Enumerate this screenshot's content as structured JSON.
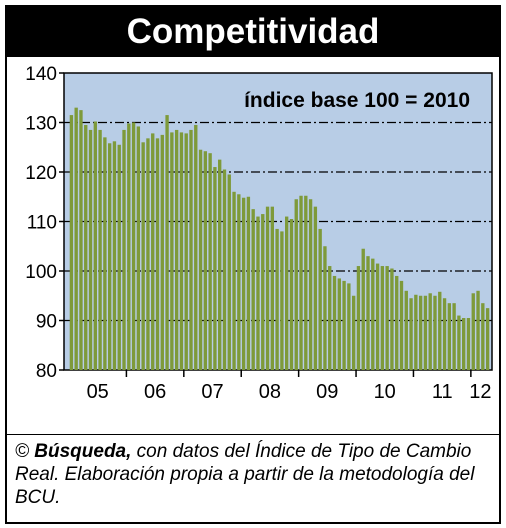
{
  "title": "Competitividad",
  "chart_data": {
    "type": "bar",
    "annotation": "índice base 100 = 2010",
    "ylim": [
      80,
      140
    ],
    "yticks": [
      80,
      90,
      100,
      110,
      120,
      130,
      140
    ],
    "gridlines_at": [
      90,
      100,
      110,
      120,
      130
    ],
    "grid": "dash-dot horizontal",
    "year_labels": [
      "05",
      "06",
      "07",
      "08",
      "09",
      "10",
      "11",
      "12"
    ],
    "bar_color": "#7e9a3a",
    "background_color": "#b8cde6",
    "series": [
      {
        "values": [
          131.5,
          133,
          132.5,
          129.5,
          128.5,
          130.2,
          128.5,
          127,
          125.8,
          126.2,
          125.5,
          128.5,
          129.8,
          130,
          129.2,
          126,
          126.8,
          127.8,
          126.8,
          127.5,
          131.5,
          128,
          128.5,
          128,
          127.8,
          128.5,
          129.5,
          124.5,
          124.2,
          123.8,
          121,
          122.5,
          120.5,
          119.5,
          116,
          115.5,
          114.8,
          115,
          112.5,
          111,
          111.5,
          113,
          113,
          108.5,
          108,
          111,
          110.5,
          114.5,
          115.2,
          115.2,
          114.5,
          113,
          108.5,
          105,
          101,
          99,
          98.5,
          98,
          97.5,
          95,
          101,
          104.5,
          103,
          102.5,
          101.5,
          101,
          101,
          100.5,
          99,
          98,
          96,
          94.5,
          95.2,
          95,
          95,
          95.5,
          95,
          95.8,
          94.5,
          93.5,
          93.5,
          91,
          90.5,
          90.5,
          95.5,
          96,
          93.5,
          92.5
        ]
      }
    ]
  },
  "caption": {
    "copyright": "© ",
    "source_name": "Búsqueda,",
    "text": " con datos del Índice de Tipo de Cambio Real. Elaboración propia a partir de la metodología del BCU."
  }
}
